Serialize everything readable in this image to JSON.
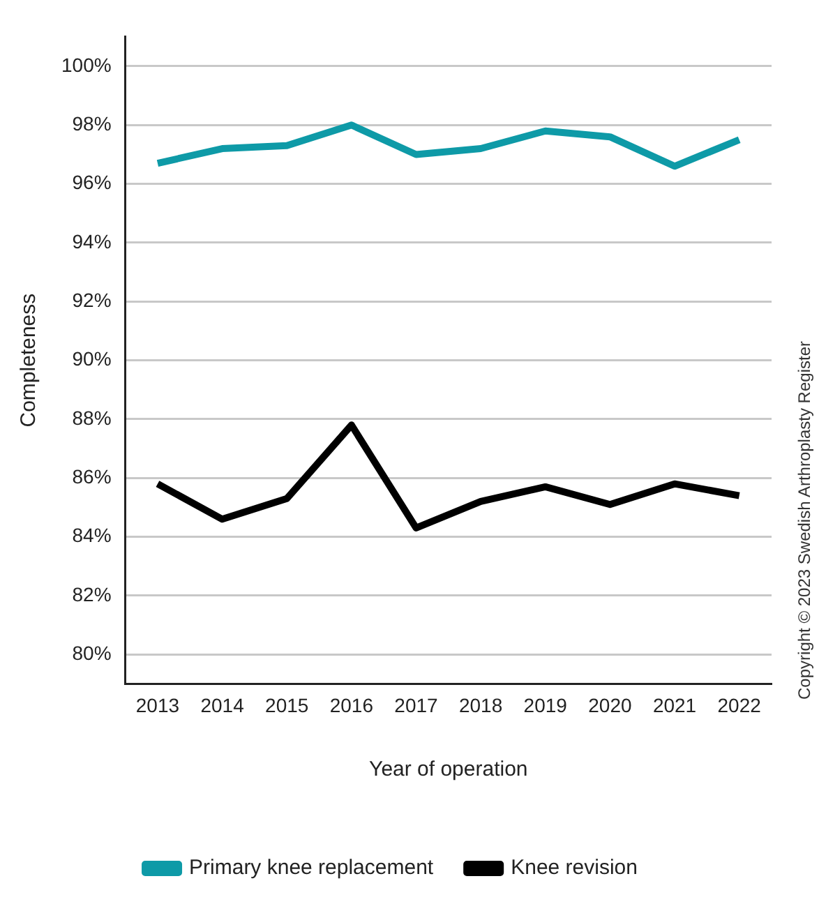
{
  "chart_data": {
    "type": "line",
    "xlabel": "Year of operation",
    "ylabel": "Completeness",
    "categories": [
      "2013",
      "2014",
      "2015",
      "2016",
      "2017",
      "2018",
      "2019",
      "2020",
      "2021",
      "2022"
    ],
    "series": [
      {
        "name": "Primary knee replacement",
        "color": "#0e9aa7",
        "values": [
          96.7,
          97.2,
          97.3,
          98.0,
          97.0,
          97.2,
          97.8,
          97.6,
          96.6,
          97.5
        ]
      },
      {
        "name": "Knee revision",
        "color": "#000000",
        "values": [
          85.8,
          84.6,
          85.3,
          87.8,
          84.3,
          85.2,
          85.7,
          85.1,
          85.8,
          85.4
        ]
      }
    ],
    "ylim": [
      79,
      101
    ],
    "yticks": [
      {
        "value": 80,
        "label": "80%"
      },
      {
        "value": 82,
        "label": "82%"
      },
      {
        "value": 84,
        "label": "84%"
      },
      {
        "value": 86,
        "label": "86%"
      },
      {
        "value": 88,
        "label": "88%"
      },
      {
        "value": 90,
        "label": "90%"
      },
      {
        "value": 92,
        "label": "92%"
      },
      {
        "value": 94,
        "label": "94%"
      },
      {
        "value": 96,
        "label": "96%"
      },
      {
        "value": 98,
        "label": "98%"
      },
      {
        "value": 100,
        "label": "100%"
      }
    ],
    "grid": "y",
    "legend": "bottom",
    "marker": "none",
    "line_style": "solid",
    "annotations": [
      "Copyright © 2023 Swedish Arthroplasty Register"
    ]
  }
}
